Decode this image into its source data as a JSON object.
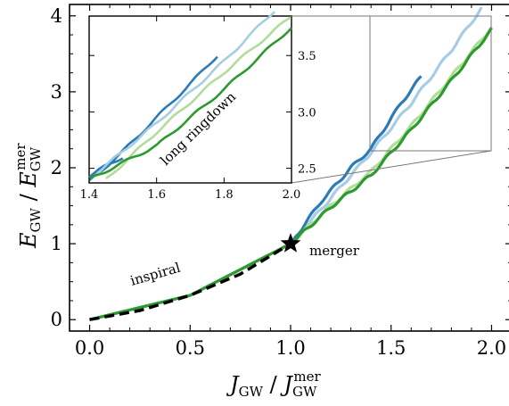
{
  "chart_data": {
    "type": "line",
    "xlabel": {
      "main": "J",
      "sub": "GW",
      "den_main": "J",
      "den_sub": "GW",
      "den_sup": "mer"
    },
    "ylabel": {
      "main": "E",
      "sub": "GW",
      "den_main": "E",
      "den_sub": "GW",
      "den_sup": "mer"
    },
    "xlim": [
      -0.1,
      2.1
    ],
    "ylim": [
      -0.15,
      4.15
    ],
    "xticks": [
      "0.0",
      "0.5",
      "1.0",
      "1.5",
      "2.0"
    ],
    "yticks": [
      "0",
      "1",
      "2",
      "3",
      "4"
    ],
    "xtick_values": [
      0,
      0.5,
      1.0,
      1.5,
      2.0
    ],
    "ytick_values": [
      0,
      1,
      2,
      3,
      4
    ],
    "annotations": {
      "inspiral": "inspiral",
      "merger": "merger",
      "ringdown": "long ringdown"
    },
    "merger_point": [
      1.0,
      1.0
    ],
    "colors": {
      "series1": "#2c7bb6",
      "series2": "#a6cde6",
      "series3": "#b2dc9a",
      "series4": "#2e9a2e",
      "inspiral_dash": "#000000"
    },
    "main_series": [
      {
        "color_key": "series2",
        "points": [
          [
            0,
            0
          ],
          [
            0.5,
            0.32
          ],
          [
            1.0,
            1.0
          ],
          [
            1.2,
            1.6
          ],
          [
            1.4,
            2.2
          ],
          [
            1.6,
            2.85
          ],
          [
            1.8,
            3.55
          ],
          [
            1.95,
            4.1
          ]
        ]
      },
      {
        "color_key": "series1",
        "points": [
          [
            0,
            0
          ],
          [
            0.5,
            0.32
          ],
          [
            1.0,
            1.0
          ],
          [
            1.15,
            1.55
          ],
          [
            1.3,
            2.0
          ],
          [
            1.4,
            2.25
          ],
          [
            1.55,
            2.85
          ],
          [
            1.65,
            3.2
          ]
        ]
      },
      {
        "color_key": "series3",
        "points": [
          [
            0,
            0
          ],
          [
            0.5,
            0.32
          ],
          [
            1.0,
            1.0
          ],
          [
            1.2,
            1.5
          ],
          [
            1.4,
            1.95
          ],
          [
            1.6,
            2.55
          ],
          [
            1.8,
            3.2
          ],
          [
            2.0,
            3.85
          ]
        ]
      },
      {
        "color_key": "series4",
        "points": [
          [
            0,
            0
          ],
          [
            0.5,
            0.32
          ],
          [
            1.0,
            1.0
          ],
          [
            1.2,
            1.48
          ],
          [
            1.4,
            1.9
          ],
          [
            1.6,
            2.5
          ],
          [
            1.8,
            3.15
          ],
          [
            2.0,
            3.82
          ]
        ]
      }
    ],
    "inspiral_line": [
      [
        0,
        0
      ],
      [
        0.25,
        0.12
      ],
      [
        0.5,
        0.32
      ],
      [
        0.75,
        0.6
      ],
      [
        1.0,
        1.0
      ]
    ],
    "inset": {
      "xlim": [
        1.4,
        2.0
      ],
      "ylim": [
        2.37,
        3.85
      ],
      "xticks": [
        "1.4",
        "1.6",
        "1.8",
        "2.0"
      ],
      "yticks": [
        "2.5",
        "3.0",
        "3.5"
      ],
      "xtick_values": [
        1.4,
        1.6,
        1.8,
        2.0
      ],
      "ytick_values": [
        2.5,
        3.0,
        3.5
      ],
      "series": [
        {
          "color_key": "series1",
          "points": [
            [
              1.4,
              2.43
            ],
            [
              1.45,
              2.52
            ],
            [
              1.5,
              2.6
            ]
          ]
        },
        {
          "color_key": "series1",
          "points": [
            [
              1.4,
              2.38
            ],
            [
              1.5,
              2.65
            ],
            [
              1.6,
              2.95
            ],
            [
              1.7,
              3.25
            ],
            [
              1.78,
              3.5
            ]
          ]
        },
        {
          "color_key": "series2",
          "points": [
            [
              1.42,
              2.45
            ],
            [
              1.6,
              2.9
            ],
            [
              1.8,
              3.45
            ],
            [
              1.95,
              3.9
            ]
          ]
        },
        {
          "color_key": "series3",
          "points": [
            [
              1.45,
              2.4
            ],
            [
              1.6,
              2.82
            ],
            [
              1.8,
              3.35
            ],
            [
              2.0,
              3.85
            ]
          ]
        },
        {
          "color_key": "series4",
          "points": [
            [
              1.4,
              2.4
            ],
            [
              1.6,
              2.7
            ],
            [
              1.8,
              3.2
            ],
            [
              2.0,
              3.75
            ]
          ]
        }
      ]
    }
  }
}
